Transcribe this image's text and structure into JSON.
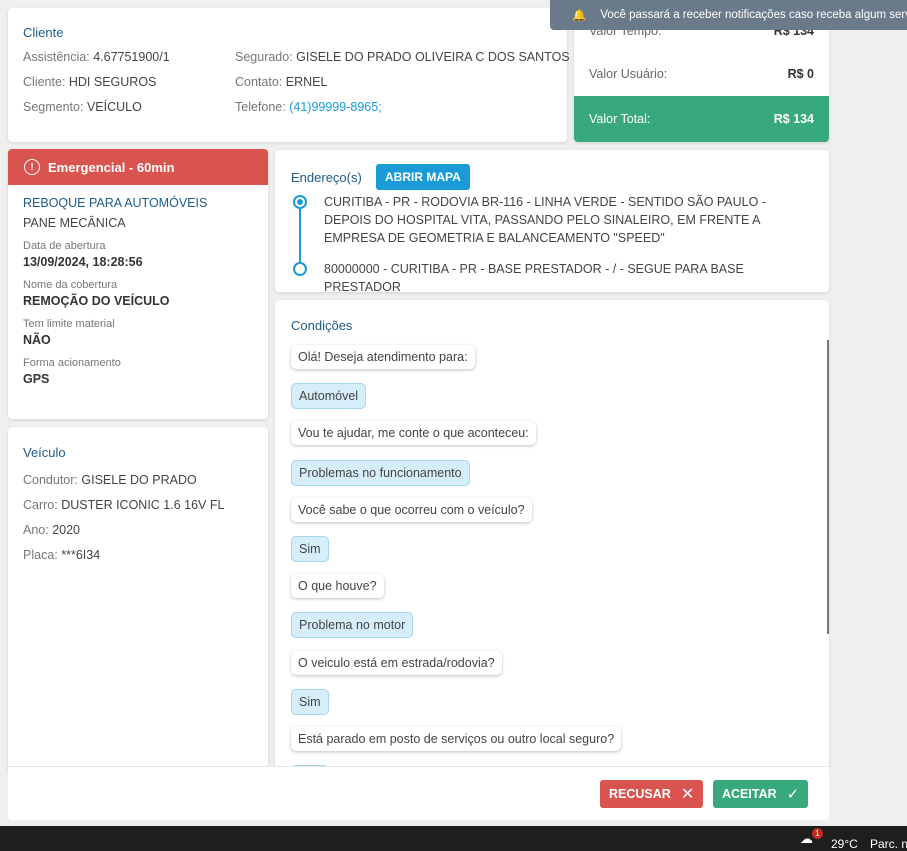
{
  "notification": {
    "icon": "bell-icon",
    "text": "Você passará a receber notificações caso receba algum servi"
  },
  "cliente": {
    "title": "Cliente",
    "assistencia_label": "Assistência:",
    "assistencia": "4.67751900/1",
    "cliente_label": "Cliente:",
    "cliente": "HDI SEGUROS",
    "segmento_label": "Segmento:",
    "segmento": "VEÍCULO",
    "segurado_label": "Segurado:",
    "segurado": "GISELE DO PRADO OLIVEIRA C DOS SANTOS",
    "contato_label": "Contato:",
    "contato": "ERNEL",
    "telefone_label": "Telefone:",
    "telefone": "(41)99999-8965;"
  },
  "valores": {
    "tempo_label": "Valor Tempo:",
    "tempo": "R$ 134",
    "usuario_label": "Valor Usuário:",
    "usuario": "R$ 0",
    "total_label": "Valor Total:",
    "total": "R$ 134",
    "total_color": "#37a97d"
  },
  "servico": {
    "badge": "Emergencial - 60min",
    "badge_color": "#d9534f",
    "tipo": "REBOQUE PARA AUTOMÓVEIS",
    "motivo": "PANE MECÂNICA",
    "fields": [
      {
        "label": "Data de abertura",
        "value": "13/09/2024, 18:28:56"
      },
      {
        "label": "Nome da cobertura",
        "value": "REMOÇÃO DO VEÍCULO"
      },
      {
        "label": "Tem limite material",
        "value": "NÃO"
      },
      {
        "label": "Forma acionamento",
        "value": "GPS"
      }
    ]
  },
  "veiculo": {
    "title": "Veículo",
    "condutor_label": "Condutor:",
    "condutor": "GISELE DO PRADO",
    "carro_label": "Carro:",
    "carro": "DUSTER ICONIC 1.6 16V FL",
    "ano_label": "Ano:",
    "ano": "2020",
    "placa_label": "Placa:",
    "placa": "***6I34"
  },
  "enderecos": {
    "title": "Endereço(s)",
    "map_button": "ABRIR MAPA",
    "items": [
      "CURITIBA - PR - RODOVIA BR-116 - LINHA VERDE - SENTIDO SÃO PAULO - DEPOIS DO HOSPITAL VITA, PASSANDO PELO SINALEIRO, EM FRENTE A EMPRESA DE GEOMETRIA E BALANCEAMENTO \"SPEED\"",
      "80000000 - CURITIBA - PR - BASE PRESTADOR - / - SEGUE PARA BASE PRESTADOR"
    ]
  },
  "condicoes": {
    "title": "Condições",
    "messages": [
      {
        "type": "q",
        "text": "Olá! Deseja atendimento para:"
      },
      {
        "type": "a",
        "text": "Automóvel"
      },
      {
        "type": "q",
        "text": "Vou te ajudar, me conte o que aconteceu:"
      },
      {
        "type": "a",
        "text": "Problemas no funcionamento"
      },
      {
        "type": "q",
        "text": "Você sabe o que ocorreu com o veículo?"
      },
      {
        "type": "a",
        "text": "Sim"
      },
      {
        "type": "q",
        "text": "O que houve?"
      },
      {
        "type": "a",
        "text": "Problema no motor"
      },
      {
        "type": "q",
        "text": "O veiculo está em estrada/rodovia?"
      },
      {
        "type": "a",
        "text": "Sim"
      },
      {
        "type": "q",
        "text": "Está parado em posto de serviços ou outro local seguro?"
      },
      {
        "type": "a",
        "text": ""
      }
    ]
  },
  "footer": {
    "recusar": "RECUSAR",
    "aceitar": "ACEITAR",
    "recusar_color": "#d9534f",
    "aceitar_color": "#37a97d"
  },
  "taskbar": {
    "temp": "29°C",
    "weather": "Parc. n",
    "badge": "1"
  }
}
